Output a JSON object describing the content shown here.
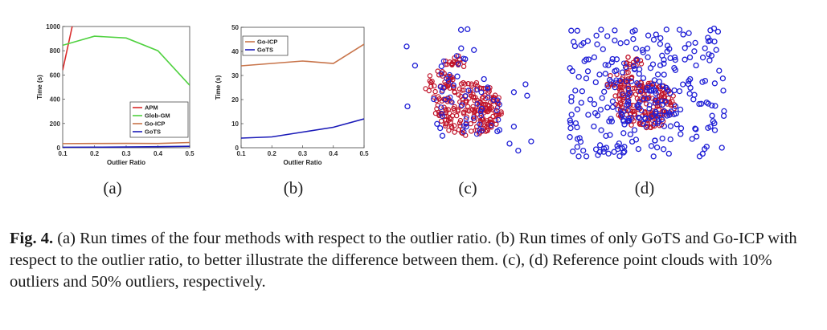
{
  "chart_data": [
    {
      "type": "line",
      "panel": "(a)",
      "x": [
        0.1,
        0.2,
        0.3,
        0.4,
        0.5
      ],
      "xlabel": "Outlier Ratio",
      "ylabel": "Time (s)",
      "xlim": [
        0.1,
        0.5
      ],
      "ylim": [
        0,
        1000
      ],
      "xticks": [
        "0.1",
        "0.2",
        "0.3",
        "0.4",
        "0.5"
      ],
      "yticks": [
        "0",
        "200",
        "400",
        "600",
        "800",
        "1000"
      ],
      "grid": false,
      "legend": "bottom-right",
      "series": [
        {
          "name": "APM",
          "color": "#d92b2b",
          "x": [
            0.1,
            0.13
          ],
          "values": [
            640,
            1000
          ]
        },
        {
          "name": "Glob-GM",
          "color": "#4fd13f",
          "x": [
            0.1,
            0.2,
            0.3,
            0.4,
            0.5
          ],
          "values": [
            845,
            920,
            905,
            800,
            515
          ]
        },
        {
          "name": "Go-ICP",
          "color": "#c8744a",
          "x": [
            0.1,
            0.2,
            0.3,
            0.4,
            0.5
          ],
          "values": [
            34,
            35,
            36,
            35,
            43
          ]
        },
        {
          "name": "GoTS",
          "color": "#1a1ab8",
          "x": [
            0.1,
            0.2,
            0.3,
            0.4,
            0.5
          ],
          "values": [
            4,
            4.5,
            6.5,
            8.5,
            12
          ]
        }
      ]
    },
    {
      "type": "line",
      "panel": "(b)",
      "x": [
        0.1,
        0.2,
        0.3,
        0.4,
        0.5
      ],
      "xlabel": "Outlier Ratio",
      "ylabel": "Time (s)",
      "xlim": [
        0.1,
        0.5
      ],
      "ylim": [
        0,
        50
      ],
      "xticks": [
        "0.1",
        "0.2",
        "0.3",
        "0.4",
        "0.5"
      ],
      "yticks": [
        "0",
        "10",
        "20",
        "30",
        "40",
        "50"
      ],
      "grid": false,
      "legend": "top-left",
      "series": [
        {
          "name": "Go-ICP",
          "color": "#c8744a",
          "x": [
            0.1,
            0.2,
            0.3,
            0.4,
            0.5
          ],
          "values": [
            34,
            35,
            36,
            35,
            43
          ]
        },
        {
          "name": "GoTS",
          "color": "#1a1ab8",
          "x": [
            0.1,
            0.2,
            0.3,
            0.4,
            0.5
          ],
          "values": [
            4,
            4.5,
            6.5,
            8.5,
            12
          ]
        }
      ]
    }
  ],
  "point_clouds": {
    "c": {
      "outlier_ratio": 0.1,
      "outlier_color": "#1f1fd6",
      "inlier_color": "#c0142a"
    },
    "d": {
      "outlier_ratio": 0.5,
      "outlier_color": "#1f1fd6",
      "inlier_color": "#c0142a"
    }
  },
  "labels": {
    "a": "(a)",
    "b": "(b)",
    "c": "(c)",
    "d": "(d)"
  },
  "caption": {
    "lead": "Fig. 4.",
    "text": " (a) Run times of the four methods with respect to the outlier ratio. (b) Run times of only GoTS and Go-ICP with respect to the outlier ratio, to better illustrate the difference between them. (c), (d) Reference point clouds with 10% outliers and 50% outliers, respectively."
  }
}
